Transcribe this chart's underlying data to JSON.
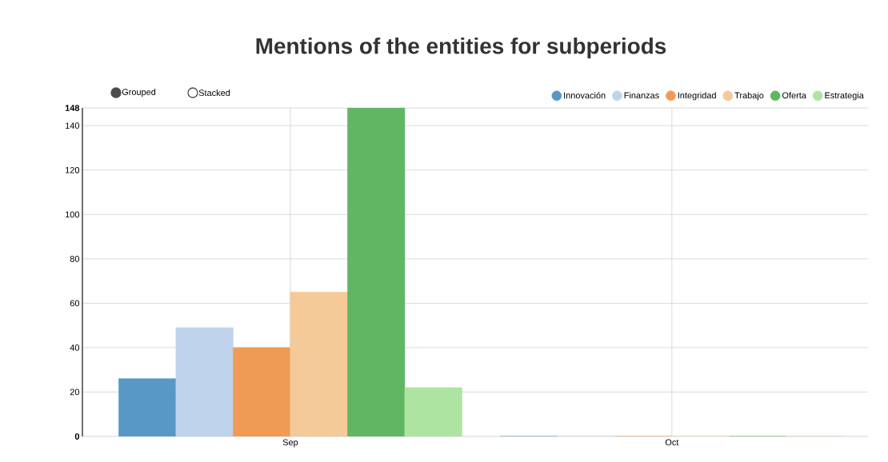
{
  "chart_data": {
    "type": "bar",
    "title": "Mentions of the entities for subperiods",
    "categories": [
      "Sep",
      "Oct"
    ],
    "series": [
      {
        "name": "Innovación",
        "color": "#5898c6",
        "values": [
          26,
          0
        ]
      },
      {
        "name": "Finanzas",
        "color": "#c0d3ec",
        "values": [
          49,
          0
        ]
      },
      {
        "name": "Integridad",
        "color": "#f09b55",
        "values": [
          40,
          0
        ]
      },
      {
        "name": "Trabajo",
        "color": "#f4ca98",
        "values": [
          65,
          0
        ]
      },
      {
        "name": "Oferta",
        "color": "#60b663",
        "values": [
          148,
          0
        ]
      },
      {
        "name": "Estrategia",
        "color": "#ade4a1",
        "values": [
          22,
          0
        ]
      }
    ],
    "ylim": [
      0,
      148
    ],
    "yticks": [
      0,
      20,
      40,
      60,
      80,
      100,
      120,
      140,
      148
    ],
    "grid": true,
    "legend": "top right",
    "annotations": [
      "Grouped",
      "Stacked"
    ]
  }
}
